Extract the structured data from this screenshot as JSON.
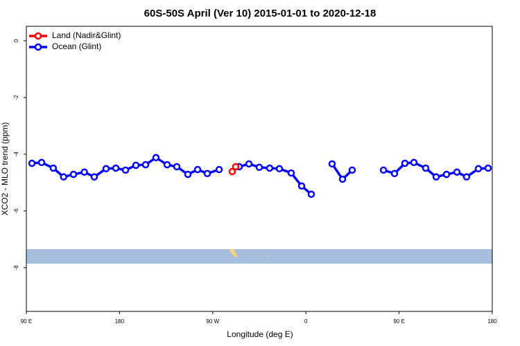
{
  "chart_data": {
    "type": "line",
    "title": "60S-50S April (Ver 10)   2015-01-01 to 2020-12-18",
    "xlabel": "Longitude (deg E)",
    "ylabel": "XCO2 - MLO trend (ppm)",
    "xlim": [
      90,
      540
    ],
    "xticks": [
      {
        "value": 90,
        "label": "90 E"
      },
      180,
      {
        "value": 270,
        "label": "90 W"
      },
      {
        "value": 360,
        "label": "0"
      },
      {
        "value": 450,
        "label": "90 E"
      },
      {
        "value": 540,
        "label": "180"
      }
    ],
    "ylim": [
      -9.54,
      0.51
    ],
    "yticks": [
      0,
      -2,
      -4,
      -6,
      -8
    ],
    "legend": "top-left",
    "series": [
      {
        "name": "Land (Nadir&Glint)",
        "color": "#ff0000",
        "x": [
          288.9,
          292.2
        ],
        "values": [
          -4.61,
          -4.44
        ]
      },
      {
        "name": "Ocean (Glint)",
        "color": "#0000ff",
        "x": [
          95.4,
          104.7,
          116,
          126,
          135.5,
          146,
          155.6,
          167,
          176.4,
          185.8,
          195.8,
          205.2,
          215.2,
          226,
          235.3,
          246,
          255.4,
          264.8,
          276.2,
          null,
          295.6,
          305,
          315,
          325,
          334.4,
          345.8,
          355.9,
          365.2,
          null,
          385.3,
          395.4,
          404.7,
          null,
          434.9,
          445.6,
          455.6,
          464.3,
          475.7,
          485.8,
          495.8,
          505.9,
          515.2,
          526.6,
          536
        ],
        "values": [
          -4.32,
          -4.29,
          -4.49,
          -4.8,
          -4.71,
          -4.63,
          -4.8,
          -4.51,
          -4.49,
          -4.56,
          -4.39,
          -4.37,
          -4.12,
          -4.37,
          -4.44,
          -4.71,
          -4.54,
          -4.68,
          -4.54,
          null,
          -4.44,
          -4.34,
          -4.46,
          -4.49,
          -4.51,
          -4.66,
          -5.12,
          -5.41,
          null,
          -4.34,
          -4.88,
          -4.56,
          null,
          -4.56,
          -4.68,
          -4.32,
          -4.29,
          -4.49,
          -4.8,
          -4.71,
          -4.63,
          -4.8,
          -4.51,
          -4.49
        ]
      }
    ]
  }
}
